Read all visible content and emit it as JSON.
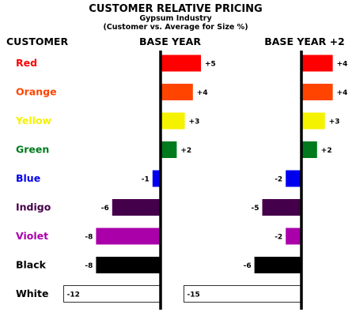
{
  "chart_data": {
    "type": "bar",
    "orientation": "horizontal",
    "title": "CUSTOMER RELATIVE PRICING",
    "subtitle_line1": "Gypsum Industry",
    "subtitle_line2": "(Customer vs. Average for Size %)",
    "category_header": "CUSTOMER",
    "categories": [
      "Red",
      "Orange",
      "Yellow",
      "Green",
      "Blue",
      "Indigo",
      "Violet",
      "Black",
      "White"
    ],
    "category_label_colors": [
      "#ff0000",
      "#ff4400",
      "#f5f200",
      "#007a1c",
      "#0000ee",
      "#44004a",
      "#aa00aa",
      "#000000",
      "#000000"
    ],
    "bar_colors": [
      "#ff0000",
      "#ff4400",
      "#f5f200",
      "#007a1c",
      "#0000ee",
      "#44004a",
      "#aa00aa",
      "#000000",
      "#ffffff"
    ],
    "series": [
      {
        "name": "BASE YEAR",
        "values": [
          5,
          4,
          3,
          2,
          -1,
          -6,
          -8,
          -8,
          -12
        ],
        "labels": [
          "+5",
          "+4",
          "+3",
          "+2",
          "-1",
          "-6",
          "-8",
          "-8",
          "-12"
        ]
      },
      {
        "name": "BASE YEAR +2",
        "values": [
          4,
          4,
          3,
          2,
          -2,
          -5,
          -2,
          -6,
          -15
        ],
        "labels": [
          "+4",
          "+4",
          "+3",
          "+2",
          "-2",
          "-5",
          "-2",
          "-6",
          "-15"
        ]
      }
    ],
    "grid": false,
    "legend": "none"
  }
}
